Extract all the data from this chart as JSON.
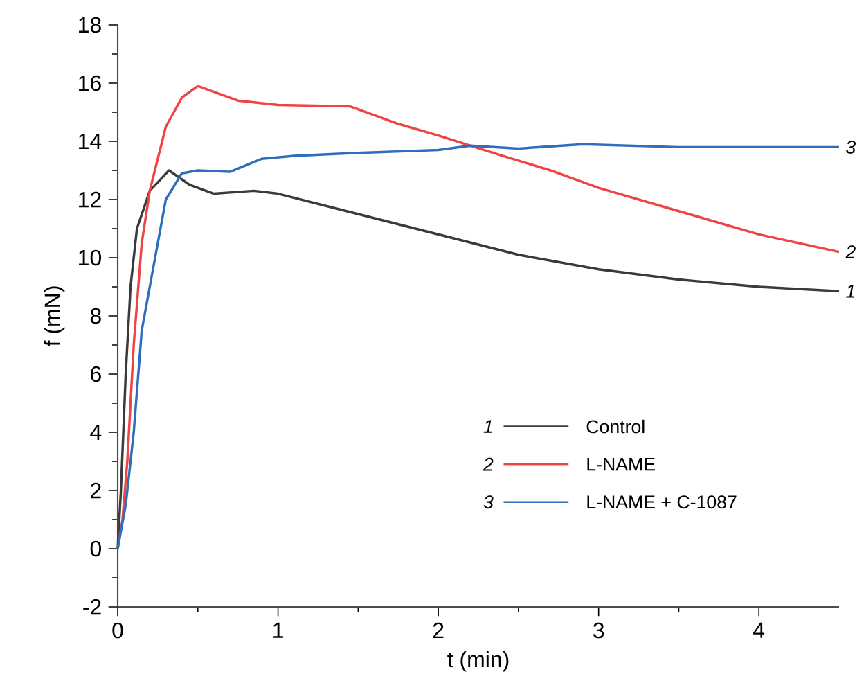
{
  "chart_data": {
    "type": "line",
    "xlabel": "t (min)",
    "ylabel": "f (mN)",
    "xlim": [
      0,
      4.5
    ],
    "ylim": [
      -2,
      18
    ],
    "xticks": [
      0,
      1,
      2,
      3,
      4
    ],
    "yticks": [
      -2,
      0,
      2,
      4,
      6,
      8,
      10,
      12,
      14,
      16,
      18
    ],
    "legend": "bottom right",
    "grid": false,
    "line_style": "solid",
    "marker": "none",
    "annotations": [
      "1",
      "2",
      "3"
    ],
    "series": [
      {
        "name": "Control",
        "color": "#3a3a3a",
        "x": [
          0,
          0.02,
          0.05,
          0.08,
          0.12,
          0.2,
          0.32,
          0.45,
          0.6,
          0.85,
          1.0,
          1.5,
          2.0,
          2.5,
          3.0,
          3.5,
          4.0,
          4.5
        ],
        "values": [
          0,
          2,
          6,
          9,
          11,
          12.3,
          13.0,
          12.5,
          12.2,
          12.3,
          12.2,
          11.5,
          10.8,
          10.1,
          9.6,
          9.25,
          9.0,
          8.85
        ]
      },
      {
        "name": "L-NAME",
        "color": "#ef4444",
        "x": [
          0,
          0.03,
          0.06,
          0.1,
          0.15,
          0.2,
          0.3,
          0.4,
          0.5,
          0.6,
          0.75,
          1.0,
          1.45,
          1.75,
          2.0,
          2.4,
          2.7,
          3.0,
          3.5,
          4.0,
          4.5
        ],
        "values": [
          0,
          1,
          3,
          7,
          10.5,
          12.3,
          14.5,
          15.5,
          15.9,
          15.7,
          15.4,
          15.25,
          15.2,
          14.6,
          14.2,
          13.5,
          13.0,
          12.4,
          11.6,
          10.8,
          10.2
        ]
      },
      {
        "name": "L-NAME + C-1087",
        "color": "#2f6ebd",
        "x": [
          0,
          0.05,
          0.1,
          0.15,
          0.2,
          0.3,
          0.4,
          0.5,
          0.7,
          0.9,
          1.1,
          1.5,
          2.0,
          2.2,
          2.5,
          2.9,
          3.5,
          4.5
        ],
        "values": [
          0,
          1.5,
          4,
          7.5,
          9,
          12,
          12.9,
          13.0,
          12.95,
          13.4,
          13.5,
          13.6,
          13.7,
          13.85,
          13.75,
          13.9,
          13.8,
          13.8
        ]
      }
    ]
  }
}
